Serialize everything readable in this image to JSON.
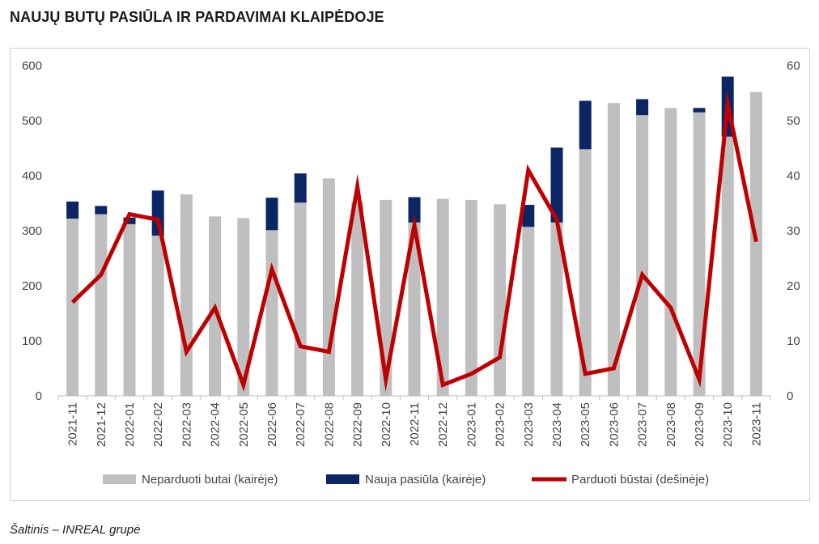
{
  "title": "NAUJŲ BUTŲ PASIŪLA IR PARDAVIMAI KLAIPĖDOJE",
  "source": "Šaltinis – INREAL grupė",
  "colors": {
    "unsold": "#bfbfbf",
    "new_supply": "#0b2565",
    "sold_line": "#c00000",
    "axis": "#bfbfbf"
  },
  "chart_data": {
    "type": "bar",
    "categories": [
      "2021-11",
      "2021-12",
      "2022-01",
      "2022-02",
      "2022-03",
      "2022-04",
      "2022-05",
      "2022-06",
      "2022-07",
      "2022-08",
      "2022-09",
      "2022-10",
      "2022-11",
      "2022-12",
      "2023-01",
      "2023-02",
      "2023-03",
      "2023-04",
      "2023-05",
      "2023-06",
      "2023-07",
      "2023-08",
      "2023-09",
      "2023-10",
      "2023-11"
    ],
    "y_left": {
      "min": 0,
      "max": 600,
      "ticks": [
        0,
        100,
        200,
        300,
        400,
        500,
        600
      ]
    },
    "y_right": {
      "min": 0,
      "max": 60,
      "ticks": [
        0,
        10,
        20,
        30,
        40,
        50,
        60
      ]
    },
    "grid": true,
    "legend_position": "bottom",
    "series": [
      {
        "name": "Neparduoti butai (kairėje)",
        "kind": "stacked-bar",
        "axis": "left",
        "values": [
          322,
          330,
          312,
          291,
          366,
          326,
          323,
          301,
          351,
          395,
          352,
          356,
          315,
          358,
          356,
          348,
          307,
          315,
          448,
          532,
          510,
          523,
          515,
          471,
          552
        ]
      },
      {
        "name": "Nauja pasiūla (kairėje)",
        "kind": "stacked-bar",
        "axis": "left",
        "values": [
          31,
          15,
          12,
          82,
          0,
          0,
          0,
          59,
          53,
          0,
          0,
          0,
          46,
          0,
          0,
          0,
          40,
          136,
          88,
          0,
          29,
          0,
          8,
          109,
          0
        ]
      },
      {
        "name": "Parduoti būstai (dešinėje)",
        "kind": "line",
        "axis": "right",
        "values": [
          17,
          22,
          33,
          32,
          8,
          16,
          2,
          23,
          9,
          8,
          38,
          3,
          31,
          2,
          4,
          7,
          41,
          32,
          4,
          5,
          22,
          16,
          3,
          53,
          28
        ]
      }
    ]
  }
}
